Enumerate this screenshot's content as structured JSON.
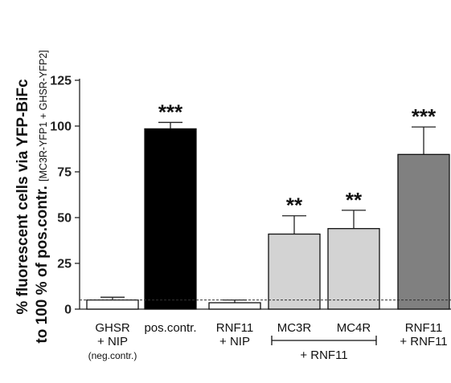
{
  "chart_data": {
    "type": "bar",
    "ylabel_line1": "% fluorescent cells via YFP-BiFc",
    "ylabel_line2_main": "to 100 % of pos.contr. ",
    "ylabel_line2_small": "[MC3R-YFP1 + GHSR-YFP2]",
    "ylim": [
      0,
      125
    ],
    "yticks": [
      0,
      25,
      50,
      75,
      100,
      125
    ],
    "ytick_labels": [
      "0",
      "25",
      "50",
      "75",
      "100",
      "125"
    ],
    "reference_line": 5,
    "bars": [
      {
        "label_lines": [
          "GHSR",
          "+ NIP"
        ],
        "sub_label": "(neg.contr.)",
        "value": 5,
        "error": 1.5,
        "color": "#ffffff",
        "significance": ""
      },
      {
        "label_lines": [
          "pos.contr."
        ],
        "sub_label": "",
        "value": 98.5,
        "error": 3.5,
        "color": "#000000",
        "significance": "***"
      },
      {
        "label_lines": [
          "RNF11",
          "+ NIP"
        ],
        "sub_label": "",
        "value": 3.5,
        "error": 1.5,
        "color": "#ffffff",
        "significance": ""
      },
      {
        "label_lines": [
          "MC3R"
        ],
        "sub_label": "",
        "value": 41,
        "error": 10,
        "color": "#d3d3d3",
        "significance": "**"
      },
      {
        "label_lines": [
          "MC4R"
        ],
        "sub_label": "",
        "value": 44,
        "error": 10,
        "color": "#d3d3d3",
        "significance": "**"
      },
      {
        "label_lines": [
          "RNF11",
          "+ RNF11"
        ],
        "sub_label": "",
        "value": 84.5,
        "error": 15,
        "color": "#808080",
        "significance": "***"
      }
    ],
    "group_bracket": {
      "label": "+ RNF11",
      "bars": [
        3,
        4
      ]
    }
  }
}
